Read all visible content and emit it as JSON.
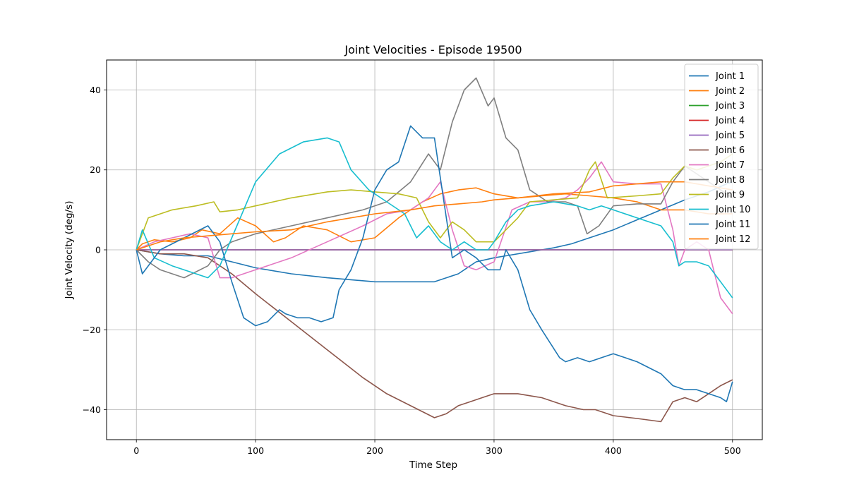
{
  "chart_data": {
    "type": "line",
    "title": "Joint Velocities - Episode 19500",
    "xlabel": "Time Step",
    "ylabel": "Joint Velocity (deg/s)",
    "xlim": [
      -25,
      525
    ],
    "ylim": [
      -47.5,
      47.5
    ],
    "xticks": [
      0,
      100,
      200,
      300,
      400,
      500
    ],
    "yticks": [
      -40,
      -20,
      0,
      20,
      40
    ],
    "ytick_labels": [
      "−40",
      "−20",
      "0",
      "20",
      "40"
    ],
    "grid": true,
    "legend_position": "top-right",
    "series": [
      {
        "name": "Joint 1",
        "color": "#1f77b4",
        "x": [
          0,
          20,
          40,
          60,
          80,
          100,
          130,
          160,
          200,
          230,
          250,
          270,
          285,
          300,
          310,
          330,
          350,
          365,
          380,
          400,
          420,
          440,
          460,
          480,
          495,
          500
        ],
        "y": [
          0,
          -1,
          -1.5,
          -1.5,
          -3,
          -4.5,
          -6,
          -7,
          -8,
          -8,
          -8,
          -6,
          -3,
          -2,
          -1.5,
          -0.5,
          0.5,
          1.5,
          3,
          5,
          7.5,
          10,
          12.5,
          14.5,
          16.5,
          17
        ]
      },
      {
        "name": "Joint 2",
        "color": "#ff7f0e",
        "x": [
          0,
          5,
          15,
          30,
          45,
          55,
          70,
          85,
          100,
          115,
          125,
          140,
          160,
          180,
          200,
          220,
          240,
          255,
          270,
          285,
          300,
          320,
          340,
          360,
          380,
          400,
          420,
          440,
          460,
          480,
          500
        ],
        "y": [
          0,
          1.5,
          2.5,
          2,
          3,
          5,
          4,
          8,
          6,
          2,
          3,
          6,
          5,
          2,
          3,
          8,
          12,
          14,
          15,
          15.5,
          14,
          13,
          13.5,
          14,
          13.5,
          13,
          12,
          10,
          10,
          9,
          9
        ]
      },
      {
        "name": "Joint 3",
        "color": "#2ca02c",
        "x": [
          0,
          500
        ],
        "y": [
          0,
          0
        ]
      },
      {
        "name": "Joint 4",
        "color": "#d62728",
        "x": [
          0,
          500
        ],
        "y": [
          0,
          0
        ]
      },
      {
        "name": "Joint 5",
        "color": "#9467bd",
        "x": [
          0,
          500
        ],
        "y": [
          0,
          0
        ]
      },
      {
        "name": "Joint 6",
        "color": "#8c564b",
        "x": [
          0,
          20,
          40,
          60,
          80,
          100,
          130,
          160,
          190,
          210,
          230,
          250,
          260,
          270,
          280,
          290,
          300,
          320,
          340,
          360,
          375,
          385,
          400,
          420,
          440,
          450,
          460,
          470,
          480,
          490,
          500
        ],
        "y": [
          0,
          -1,
          -1,
          -2,
          -6,
          -11,
          -18,
          -25,
          -32,
          -36,
          -39,
          -42,
          -41,
          -39,
          -38,
          -37,
          -36,
          -36,
          -37,
          -39,
          -40,
          -40,
          -41.5,
          -42.2,
          -43,
          -38,
          -37,
          -38,
          -36,
          -34,
          -32.5
        ]
      },
      {
        "name": "Joint 7",
        "color": "#e377c2",
        "x": [
          0,
          15,
          30,
          45,
          60,
          70,
          80,
          100,
          130,
          160,
          190,
          210,
          230,
          245,
          255,
          265,
          275,
          285,
          300,
          315,
          330,
          345,
          360,
          370,
          380,
          390,
          400,
          420,
          440,
          450,
          455,
          460,
          470,
          480,
          490,
          500
        ],
        "y": [
          0,
          2,
          3,
          4,
          3,
          -7,
          -7,
          -5,
          -2,
          2,
          6,
          9,
          10,
          13,
          17,
          5,
          -4,
          -5,
          -3,
          10,
          12,
          12,
          13,
          15,
          18,
          22,
          17,
          16.5,
          16.5,
          5,
          -4,
          0,
          2,
          0,
          -12,
          -16
        ]
      },
      {
        "name": "Joint 8",
        "color": "#7f7f7f",
        "x": [
          0,
          10,
          20,
          40,
          60,
          70,
          80,
          100,
          130,
          160,
          190,
          210,
          230,
          245,
          255,
          265,
          275,
          285,
          295,
          300,
          310,
          320,
          330,
          345,
          360,
          370,
          378,
          388,
          400,
          420,
          440,
          450,
          460,
          480,
          500
        ],
        "y": [
          0,
          -3,
          -5,
          -7,
          -4,
          0,
          2,
          4,
          6,
          8,
          10,
          12,
          17,
          24,
          20,
          32,
          40,
          43,
          36,
          38,
          28,
          25,
          15,
          12,
          12,
          11,
          4,
          6,
          11,
          11.5,
          11.5,
          17,
          21,
          17,
          13
        ]
      },
      {
        "name": "Joint 9",
        "color": "#bcbd22",
        "x": [
          0,
          10,
          30,
          50,
          65,
          70,
          85,
          100,
          130,
          160,
          180,
          200,
          220,
          235,
          245,
          255,
          265,
          275,
          285,
          300,
          310,
          320,
          330,
          350,
          370,
          380,
          385,
          395,
          420,
          440,
          450,
          460,
          470,
          480,
          490,
          500
        ],
        "y": [
          0,
          8,
          10,
          11,
          12,
          9.5,
          10,
          11,
          13,
          14.5,
          15,
          14.5,
          14,
          13,
          7,
          3,
          7,
          5,
          2,
          2,
          5,
          8,
          12,
          12.5,
          13,
          20,
          22,
          13,
          13.5,
          14,
          18,
          21,
          20,
          21,
          22,
          24
        ]
      },
      {
        "name": "Joint 10",
        "color": "#17becf",
        "x": [
          0,
          5,
          15,
          30,
          50,
          60,
          70,
          80,
          100,
          120,
          140,
          160,
          170,
          180,
          195,
          210,
          225,
          235,
          245,
          255,
          265,
          275,
          285,
          295,
          300,
          310,
          320,
          330,
          350,
          370,
          380,
          390,
          400,
          420,
          440,
          450,
          455,
          460,
          470,
          480,
          490,
          500
        ],
        "y": [
          0,
          5,
          -2,
          -4,
          -6,
          -7,
          -4,
          3,
          17,
          24,
          27,
          28,
          27,
          20,
          15,
          12,
          9,
          3,
          6,
          2,
          0,
          2,
          0,
          0,
          2,
          7,
          10,
          11,
          12,
          11,
          10,
          11,
          10,
          8,
          6,
          2,
          -4,
          -3,
          -3,
          -4,
          -8,
          -12
        ]
      },
      {
        "name": "Joint 11",
        "color": "#1f77b4",
        "x": [
          0,
          5,
          20,
          40,
          60,
          70,
          80,
          90,
          100,
          110,
          120,
          125,
          135,
          145,
          155,
          165,
          170,
          180,
          190,
          200,
          210,
          220,
          230,
          240,
          250,
          255,
          265,
          275,
          285,
          295,
          305,
          310,
          320,
          330,
          340,
          355,
          360,
          370,
          380,
          390,
          400,
          410,
          420,
          440,
          450,
          460,
          470,
          480,
          490,
          495,
          500
        ],
        "y": [
          0,
          -6,
          0,
          3,
          6,
          2,
          -8,
          -17,
          -19,
          -18,
          -15,
          -16,
          -17,
          -17,
          -18,
          -17,
          -10,
          -5,
          3,
          15,
          20,
          22,
          31,
          28,
          28,
          18,
          -2,
          0,
          -2,
          -5,
          -5,
          0,
          -5,
          -15,
          -20,
          -27,
          -28,
          -27,
          -28,
          -27,
          -26,
          -27,
          -28,
          -31,
          -34,
          -35,
          -35,
          -36,
          -37,
          -38,
          -33
        ]
      },
      {
        "name": "Joint 12",
        "color": "#ff7f0e",
        "x": [
          0,
          20,
          40,
          60,
          80,
          100,
          130,
          160,
          200,
          230,
          250,
          270,
          290,
          300,
          320,
          350,
          380,
          400,
          420,
          440,
          460,
          480,
          500
        ],
        "y": [
          0,
          2,
          3,
          3.5,
          4,
          4.5,
          5,
          7,
          9,
          10,
          11,
          11.5,
          12,
          12.5,
          13,
          14,
          14.5,
          16,
          16.5,
          17,
          17,
          16,
          15
        ]
      }
    ]
  }
}
